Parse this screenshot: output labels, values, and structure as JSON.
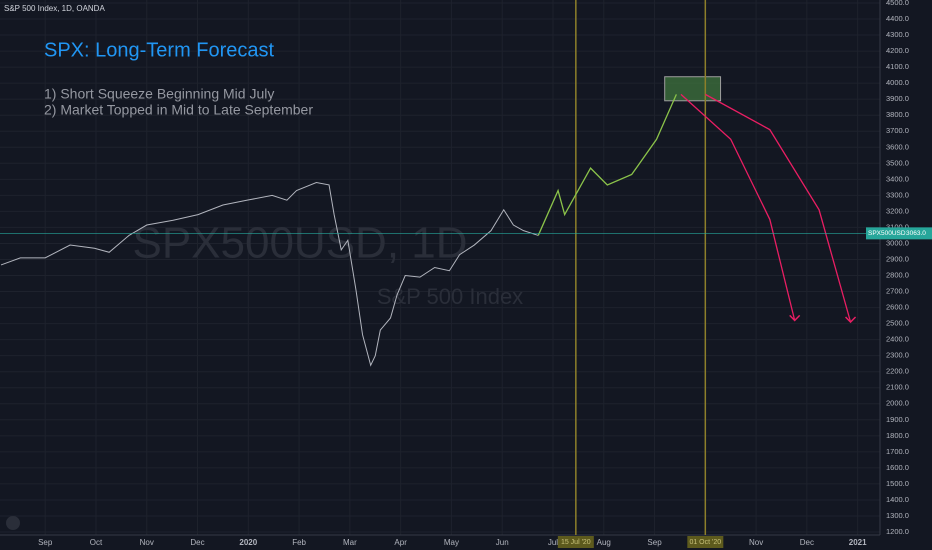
{
  "chart_data": {
    "type": "line",
    "source": "S&P 500 Index, 1D, OANDA",
    "title": "SPX: Long-Term Forecast",
    "notes": [
      "1) Short Squeeze Beginning Mid July",
      "2) Market Topped in Mid to Late September"
    ],
    "watermark": "SPX500USD, 1D",
    "watermark_sub": "S&P 500 Index",
    "xlim": [
      -0.89,
      16.44
    ],
    "ylim": [
      1200,
      4500
    ],
    "grid": true,
    "xticks": [
      {
        "value": 0,
        "label": "Sep"
      },
      {
        "value": 1,
        "label": "Oct"
      },
      {
        "value": 2,
        "label": "Nov"
      },
      {
        "value": 3,
        "label": "Dec"
      },
      {
        "value": 4,
        "label": "2020"
      },
      {
        "value": 5,
        "label": "Feb"
      },
      {
        "value": 6,
        "label": "Mar"
      },
      {
        "value": 7,
        "label": "Apr"
      },
      {
        "value": 8,
        "label": "May"
      },
      {
        "value": 9,
        "label": "Jun"
      },
      {
        "value": 10,
        "label": "Jul"
      },
      {
        "value": 11,
        "label": "Aug"
      },
      {
        "value": 12,
        "label": "Sep"
      },
      {
        "value": 13,
        "label": "Oct"
      },
      {
        "value": 14,
        "label": "Nov"
      },
      {
        "value": 15,
        "label": "Dec"
      },
      {
        "value": 16,
        "label": "2021"
      }
    ],
    "yticks": [
      {
        "value": 1200,
        "label": "1200.0"
      },
      {
        "value": 1300,
        "label": "1300.0"
      },
      {
        "value": 1400,
        "label": "1400.0"
      },
      {
        "value": 1500,
        "label": "1500.0"
      },
      {
        "value": 1600,
        "label": "1600.0"
      },
      {
        "value": 1700,
        "label": "1700.0"
      },
      {
        "value": 1800,
        "label": "1800.0"
      },
      {
        "value": 1900,
        "label": "1900.0"
      },
      {
        "value": 2000,
        "label": "2000.0"
      },
      {
        "value": 2100,
        "label": "2100.0"
      },
      {
        "value": 2200,
        "label": "2200.0"
      },
      {
        "value": 2300,
        "label": "2300.0"
      },
      {
        "value": 2400,
        "label": "2400.0"
      },
      {
        "value": 2500,
        "label": "2500.0"
      },
      {
        "value": 2600,
        "label": "2600.0"
      },
      {
        "value": 2700,
        "label": "2700.0"
      },
      {
        "value": 2800,
        "label": "2800.0"
      },
      {
        "value": 2900,
        "label": "2900.0"
      },
      {
        "value": 3000,
        "label": "3000.0"
      },
      {
        "value": 3100,
        "label": "3100.0"
      },
      {
        "value": 3200,
        "label": "3200.0"
      },
      {
        "value": 3300,
        "label": "3300.0"
      },
      {
        "value": 3400,
        "label": "3400.0"
      },
      {
        "value": 3500,
        "label": "3500.0"
      },
      {
        "value": 3600,
        "label": "3600.0"
      },
      {
        "value": 3700,
        "label": "3700.0"
      },
      {
        "value": 3800,
        "label": "3800.0"
      },
      {
        "value": 3900,
        "label": "3900.0"
      },
      {
        "value": 4000,
        "label": "4000.0"
      },
      {
        "value": 4100,
        "label": "4100.0"
      },
      {
        "value": 4200,
        "label": "4200.0"
      },
      {
        "value": 4300,
        "label": "4300.0"
      },
      {
        "value": 4400,
        "label": "4400.0"
      },
      {
        "value": 4500,
        "label": "4500.0"
      }
    ],
    "series": [
      {
        "name": "SPX500USD",
        "color": "#b2b5be",
        "x": [
          -0.87,
          -0.49,
          0,
          0.49,
          0.97,
          1.26,
          1.65,
          2.0,
          2.52,
          3.01,
          3.5,
          3.98,
          4.47,
          4.76,
          4.95,
          5.34,
          5.59,
          5.69,
          5.83,
          5.96,
          6.12,
          6.25,
          6.41,
          6.5,
          6.6,
          6.8,
          6.93,
          7.09,
          7.38,
          7.67,
          7.96,
          8.16,
          8.45,
          8.78,
          9.03,
          9.22,
          9.42,
          9.71
        ],
        "values": [
          2866,
          2910,
          2910,
          2990,
          2970,
          2945,
          3050,
          3115,
          3145,
          3180,
          3240,
          3270,
          3300,
          3270,
          3330,
          3380,
          3365,
          3180,
          2960,
          3020,
          2710,
          2430,
          2240,
          2300,
          2460,
          2535,
          2680,
          2800,
          2790,
          2850,
          2830,
          2930,
          2990,
          3080,
          3210,
          3115,
          3080,
          3050
        ]
      },
      {
        "color": "#8bc34a",
        "x": [
          9.71,
          10.1,
          10.23,
          10.74,
          11.07,
          11.55,
          12.04,
          12.43
        ],
        "values": [
          3050,
          3330,
          3180,
          3470,
          3365,
          3430,
          3650,
          3930
        ]
      },
      {
        "color": "#e91e63",
        "x": [
          12.52,
          13.5,
          14.27,
          14.76
        ],
        "values": [
          3930,
          3650,
          3150,
          2520
        ]
      },
      {
        "color": "#e91e63",
        "x": [
          13.0,
          14.27,
          15.24,
          15.86
        ],
        "values": [
          3930,
          3710,
          3210,
          2510
        ]
      }
    ],
    "vlines": [
      {
        "value": 10.45,
        "label": "15 Jul '20"
      },
      {
        "value": 13.0,
        "label": "01 Oct '20"
      }
    ],
    "forecast_zone": {
      "x": [
        12.2,
        13.3
      ],
      "y": [
        3890,
        4040
      ]
    },
    "last_price": {
      "name": "SPX500USD",
      "value": 3063,
      "label": "3063.0"
    }
  }
}
